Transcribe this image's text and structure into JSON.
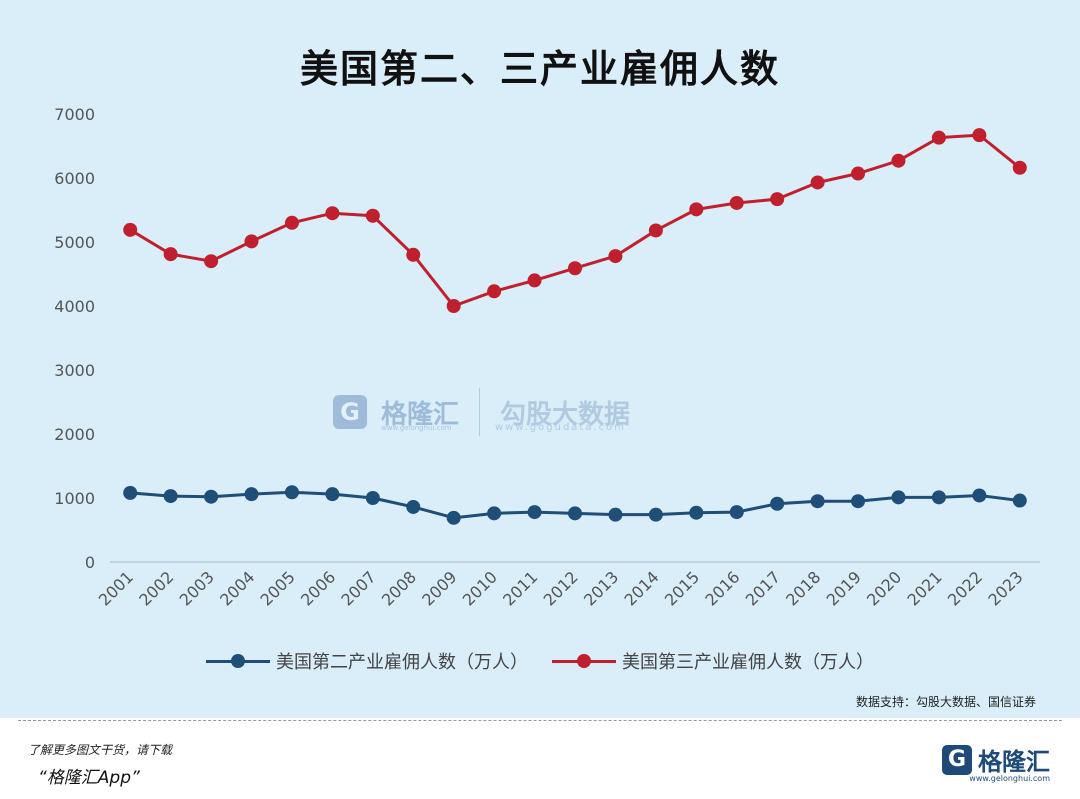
{
  "chart_data": {
    "type": "line",
    "title": "美国第二、三产业雇佣人数",
    "xlabel": "",
    "ylabel": "",
    "categories": [
      "2001",
      "2002",
      "2003",
      "2004",
      "2005",
      "2006",
      "2007",
      "2008",
      "2009",
      "2010",
      "2011",
      "2012",
      "2013",
      "2014",
      "2015",
      "2016",
      "2017",
      "2018",
      "2019",
      "2020",
      "2021",
      "2022",
      "2023"
    ],
    "ylim": [
      0,
      7000
    ],
    "yticks": [
      "0",
      "1000",
      "2000",
      "3000",
      "4000",
      "5000",
      "6000",
      "7000"
    ],
    "grid": false,
    "legend_position": "bottom",
    "series": [
      {
        "name": "美国第二产业雇佣人数（万人）",
        "color": "#1f4e79",
        "values": [
          1080,
          1030,
          1020,
          1060,
          1090,
          1060,
          1000,
          860,
          690,
          760,
          780,
          760,
          740,
          740,
          770,
          780,
          910,
          950,
          950,
          1010,
          1010,
          1040,
          960
        ]
      },
      {
        "name": "美国第三产业雇佣人数（万人）",
        "color": "#c0202e",
        "values": [
          5190,
          4810,
          4700,
          5010,
          5300,
          5450,
          5410,
          4800,
          4000,
          4230,
          4400,
          4590,
          4780,
          5180,
          5510,
          5610,
          5670,
          5930,
          6070,
          6270,
          6630,
          6670,
          6160
        ]
      }
    ]
  },
  "source_note": "数据支持：勾股大数据、国信证券",
  "watermark": {
    "brand": "格隆汇",
    "brand_url": "www.gelonghui.com",
    "partner": "勾股大数据",
    "partner_url": "www.gogudata.com"
  },
  "footer": {
    "line1": "了解更多图文干货，请下载",
    "line2": "“格隆汇App”",
    "logo_letter": "G",
    "logo_name": "格隆汇",
    "logo_url": "www.gelonghui.com"
  }
}
